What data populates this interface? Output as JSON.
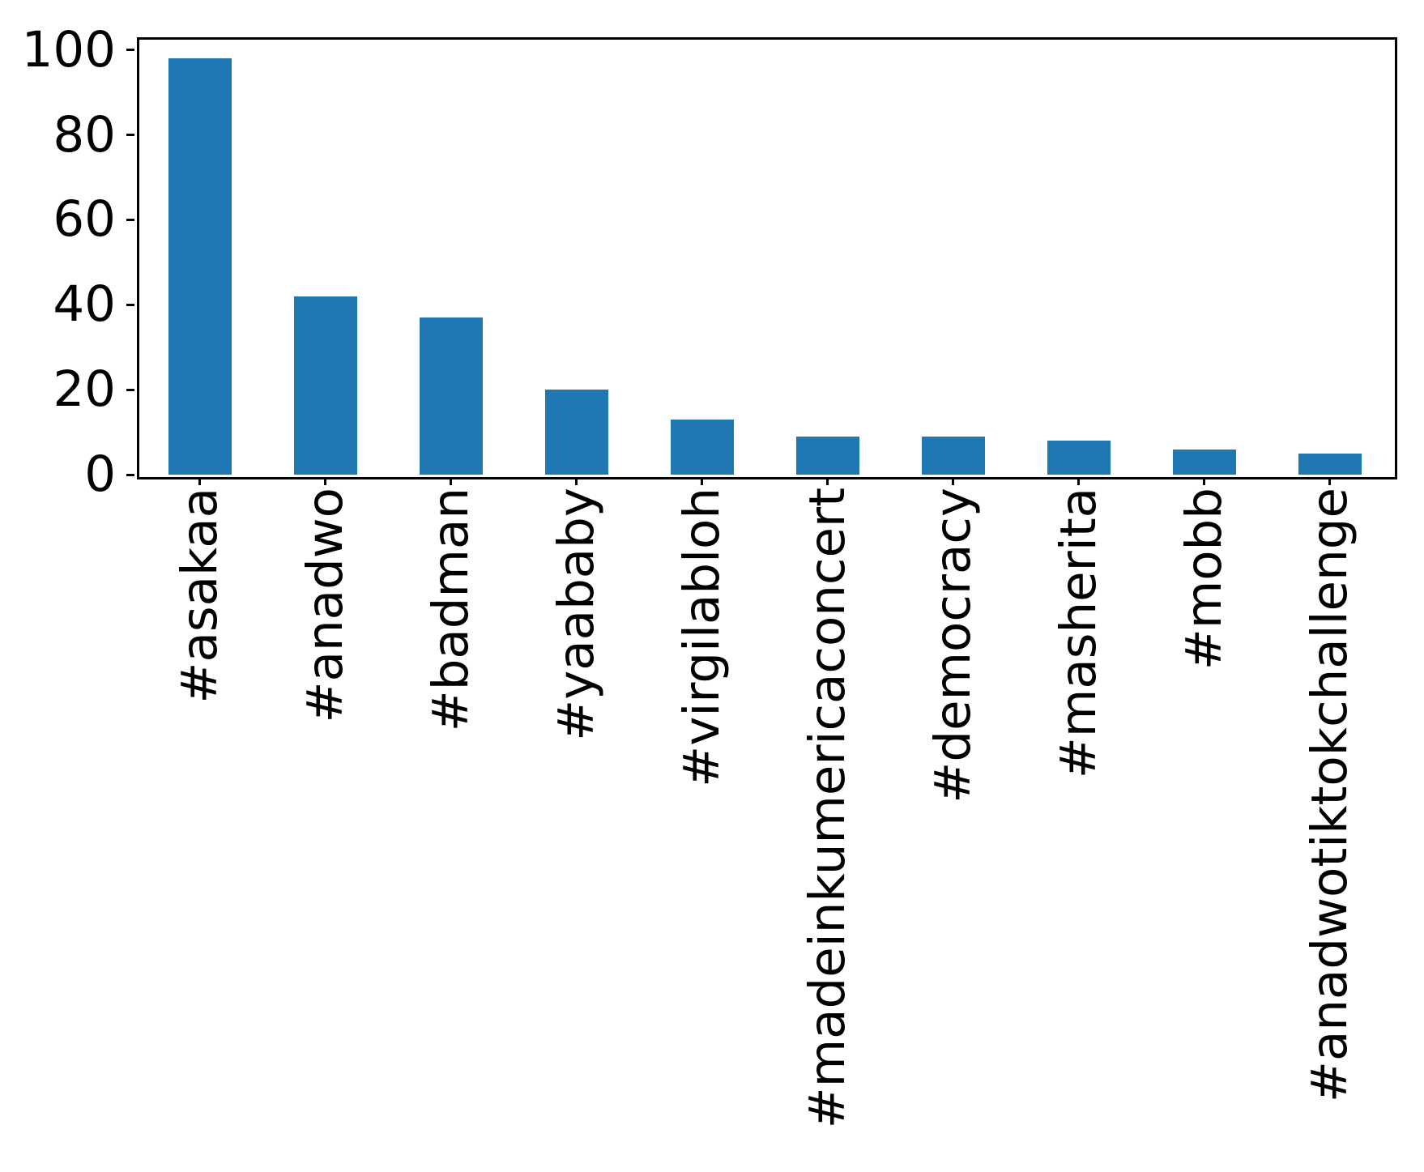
{
  "chart_data": {
    "type": "bar",
    "title": "",
    "xlabel": "",
    "ylabel": "",
    "categories": [
      "#asakaa",
      "#anadwo",
      "#badman",
      "#yaababy",
      "#virgilabloh",
      "#madeinkumericaconcert",
      "#democracy",
      "#masherita",
      "#mobb",
      "#anadwotiktokchallenge"
    ],
    "values": [
      98,
      42,
      37,
      20,
      13,
      9,
      9,
      8,
      6,
      5
    ],
    "yticks": [
      0,
      20,
      40,
      60,
      80,
      100
    ],
    "ylim": [
      0,
      103
    ],
    "x_tick_rotation": 90,
    "bar_color": "#1f77b4",
    "axis_color": "#000000",
    "background_color": "#ffffff",
    "grid": false,
    "legend_position": "none"
  }
}
